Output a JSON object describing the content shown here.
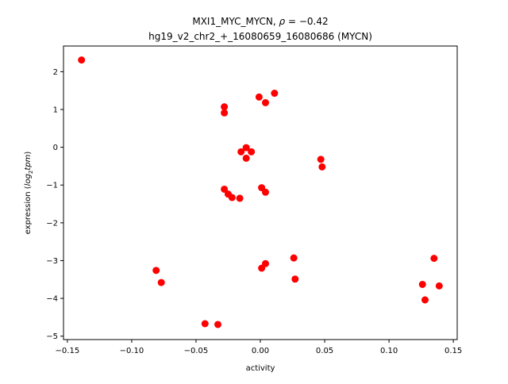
{
  "chart_data": {
    "type": "scatter",
    "title_line1_prefix": "MXI1_MYC_MYCN, ",
    "title_line1_rho": "ρ",
    "title_line1_value": " = −0.42",
    "title_line2": "hg19_v2_chr2_+_16080659_16080686 (MYCN)",
    "xlabel": "activity",
    "ylabel_prefix": "expression (",
    "ylabel_log": "log",
    "ylabel_sub": "2",
    "ylabel_tpm": "tpm",
    "ylabel_suffix": ")",
    "xlim": [
      -0.153,
      0.153
    ],
    "ylim": [
      -5.09,
      2.68
    ],
    "xticks": [
      -0.15,
      -0.1,
      -0.05,
      0.0,
      0.05,
      0.1,
      0.15
    ],
    "xtick_labels": [
      "−0.15",
      "−0.10",
      "−0.05",
      "0.00",
      "0.05",
      "0.10",
      "0.15"
    ],
    "yticks": [
      2,
      1,
      0,
      -1,
      -2,
      -3,
      -4,
      -5
    ],
    "ytick_labels": [
      "2",
      "1",
      "0",
      "−1",
      "−2",
      "−3",
      "−4",
      "−5"
    ],
    "marker_color": "#ff0000",
    "grid": false,
    "points": [
      {
        "x": -0.139,
        "y": 2.31
      },
      {
        "x": -0.028,
        "y": 1.07
      },
      {
        "x": -0.028,
        "y": 0.91
      },
      {
        "x": -0.001,
        "y": 1.33
      },
      {
        "x": 0.004,
        "y": 1.18
      },
      {
        "x": 0.011,
        "y": 1.43
      },
      {
        "x": -0.015,
        "y": -0.12
      },
      {
        "x": -0.011,
        "y": -0.01
      },
      {
        "x": -0.007,
        "y": -0.12
      },
      {
        "x": -0.011,
        "y": -0.29
      },
      {
        "x": 0.047,
        "y": -0.32
      },
      {
        "x": 0.048,
        "y": -0.52
      },
      {
        "x": -0.028,
        "y": -1.11
      },
      {
        "x": -0.025,
        "y": -1.24
      },
      {
        "x": -0.022,
        "y": -1.33
      },
      {
        "x": -0.016,
        "y": -1.35
      },
      {
        "x": 0.001,
        "y": -1.07
      },
      {
        "x": 0.004,
        "y": -1.19
      },
      {
        "x": -0.081,
        "y": -3.26
      },
      {
        "x": -0.077,
        "y": -3.58
      },
      {
        "x": 0.001,
        "y": -3.2
      },
      {
        "x": 0.004,
        "y": -3.08
      },
      {
        "x": 0.026,
        "y": -2.93
      },
      {
        "x": 0.027,
        "y": -3.49
      },
      {
        "x": 0.126,
        "y": -3.63
      },
      {
        "x": 0.128,
        "y": -4.04
      },
      {
        "x": 0.135,
        "y": -2.94
      },
      {
        "x": 0.139,
        "y": -3.67
      },
      {
        "x": -0.043,
        "y": -4.67
      },
      {
        "x": -0.033,
        "y": -4.69
      }
    ]
  }
}
